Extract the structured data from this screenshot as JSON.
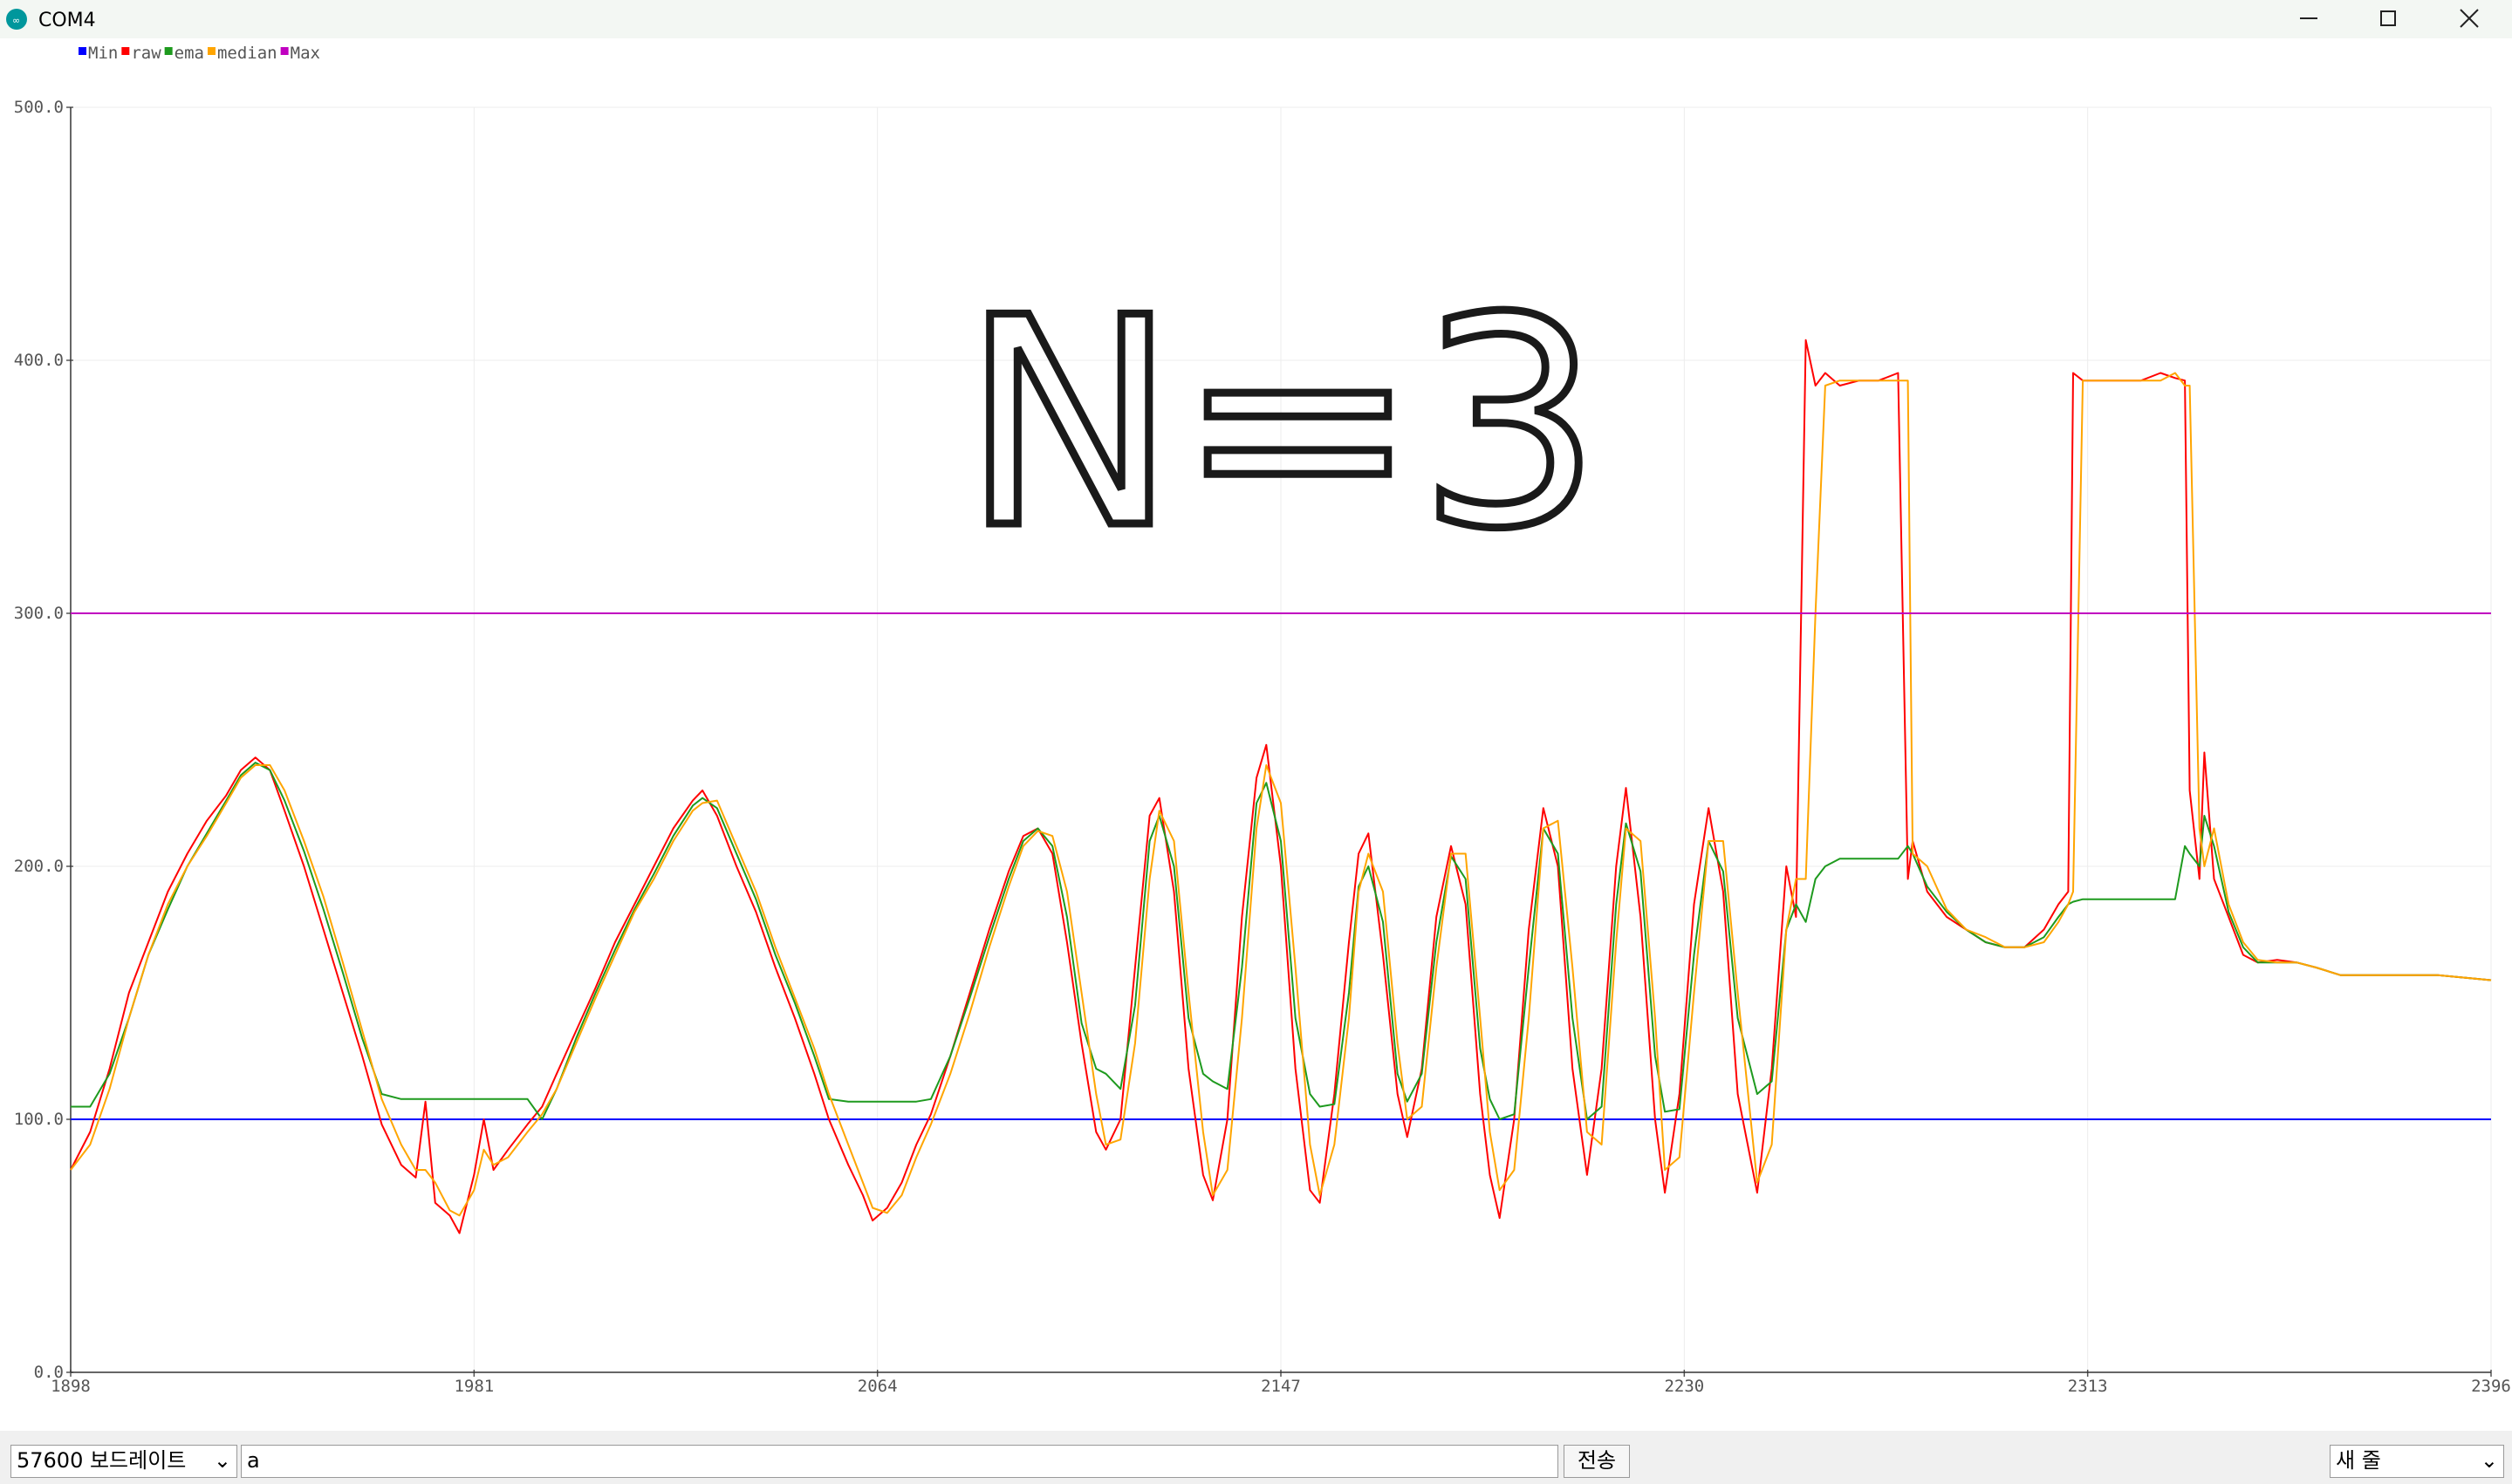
{
  "window": {
    "title": "COM4"
  },
  "controls": {
    "baud_rate": "57600 보드레이트",
    "input_text": "a",
    "send_button": "전송",
    "line_ending": "새 줄"
  },
  "chart_data": {
    "type": "line",
    "annotation": "N=3",
    "x": [
      1898,
      1902,
      1906,
      1910,
      1914,
      1918,
      1922,
      1926,
      1930,
      1933,
      1936,
      1939,
      1942,
      1946,
      1950,
      1954,
      1958,
      1962,
      1966,
      1969,
      1971,
      1973,
      1976,
      1978,
      1981,
      1983,
      1985,
      1988,
      1992,
      1995,
      1998,
      2002,
      2006,
      2010,
      2014,
      2018,
      2022,
      2026,
      2028,
      2031,
      2035,
      2039,
      2043,
      2047,
      2051,
      2054,
      2058,
      2061,
      2063,
      2066,
      2069,
      2072,
      2075,
      2079,
      2083,
      2087,
      2091,
      2094,
      2097,
      2100,
      2103,
      2106,
      2109,
      2111,
      2114,
      2117,
      2120,
      2122,
      2125,
      2128,
      2131,
      2133,
      2136,
      2139,
      2142,
      2144,
      2147,
      2150,
      2153,
      2155,
      2158,
      2161,
      2163,
      2165,
      2168,
      2171,
      2173,
      2176,
      2179,
      2182,
      2185,
      2188,
      2190,
      2192,
      2195,
      2198,
      2201,
      2204,
      2207,
      2210,
      2213,
      2216,
      2218,
      2221,
      2224,
      2226,
      2229,
      2232,
      2235,
      2238,
      2241,
      2245,
      2248,
      2251,
      2253,
      2255,
      2257,
      2259,
      2262,
      2266,
      2270,
      2274,
      2276,
      2277,
      2280,
      2284,
      2288,
      2292,
      2296,
      2300,
      2304,
      2307,
      2309,
      2310,
      2312,
      2316,
      2320,
      2324,
      2328,
      2331,
      2333,
      2334,
      2336,
      2337,
      2339,
      2342,
      2345,
      2348,
      2352,
      2356,
      2360,
      2365,
      2375,
      2385,
      2396
    ],
    "series": [
      {
        "name": "Min",
        "color": "#0000ff",
        "x": [
          1898,
          2396
        ],
        "values": [
          100,
          100
        ]
      },
      {
        "name": "raw",
        "color": "#ff0000",
        "values": [
          80,
          95,
          120,
          150,
          170,
          190,
          205,
          218,
          228,
          238,
          243,
          238,
          222,
          200,
          175,
          150,
          125,
          98,
          82,
          77,
          107,
          67,
          62,
          55,
          78,
          100,
          80,
          88,
          98,
          105,
          118,
          135,
          152,
          170,
          185,
          200,
          215,
          226,
          230,
          220,
          200,
          182,
          160,
          140,
          118,
          100,
          82,
          70,
          60,
          65,
          75,
          90,
          102,
          125,
          150,
          175,
          198,
          212,
          215,
          205,
          170,
          130,
          95,
          88,
          100,
          160,
          220,
          227,
          190,
          120,
          78,
          68,
          100,
          180,
          235,
          248,
          200,
          120,
          72,
          67,
          110,
          170,
          205,
          213,
          165,
          110,
          93,
          120,
          180,
          208,
          185,
          110,
          78,
          61,
          100,
          175,
          223,
          200,
          120,
          78,
          120,
          200,
          231,
          180,
          100,
          71,
          110,
          185,
          223,
          190,
          110,
          71,
          120,
          200,
          180,
          408,
          390,
          395,
          390,
          392,
          392,
          395,
          195,
          210,
          190,
          180,
          175,
          170,
          168,
          168,
          175,
          185,
          190,
          395,
          392,
          392,
          392,
          392,
          395,
          393,
          392,
          230,
          195,
          245,
          195,
          180,
          165,
          162,
          163,
          162,
          160,
          157,
          157,
          157,
          155
        ]
      },
      {
        "name": "ema",
        "color": "#1e9a1e",
        "values": [
          105,
          105,
          118,
          140,
          165,
          183,
          200,
          213,
          226,
          236,
          241,
          238,
          226,
          206,
          183,
          158,
          132,
          110,
          108,
          108,
          108,
          108,
          108,
          108,
          108,
          108,
          108,
          108,
          108,
          100,
          112,
          132,
          150,
          167,
          183,
          197,
          212,
          224,
          227,
          223,
          205,
          187,
          165,
          146,
          125,
          108,
          107,
          107,
          107,
          107,
          107,
          107,
          108,
          125,
          148,
          172,
          195,
          210,
          215,
          208,
          180,
          138,
          120,
          118,
          112,
          145,
          210,
          220,
          200,
          140,
          118,
          115,
          112,
          160,
          225,
          233,
          210,
          140,
          110,
          105,
          106,
          150,
          192,
          200,
          178,
          118,
          107,
          118,
          170,
          204,
          195,
          128,
          108,
          100,
          102,
          160,
          215,
          205,
          140,
          100,
          105,
          185,
          217,
          198,
          125,
          103,
          104,
          165,
          210,
          198,
          140,
          110,
          115,
          175,
          185,
          178,
          195,
          200,
          203,
          203,
          203,
          203,
          208,
          205,
          192,
          182,
          175,
          170,
          168,
          168,
          172,
          180,
          185,
          186,
          187,
          187,
          187,
          187,
          187,
          187,
          208,
          205,
          200,
          220,
          208,
          182,
          168,
          162,
          162,
          162,
          160,
          157,
          157,
          157,
          155
        ]
      },
      {
        "name": "median",
        "color": "#ffa500",
        "values": [
          80,
          90,
          112,
          140,
          165,
          185,
          200,
          212,
          225,
          235,
          240,
          240,
          230,
          210,
          188,
          162,
          135,
          108,
          90,
          80,
          80,
          75,
          64,
          62,
          72,
          88,
          82,
          85,
          95,
          102,
          112,
          130,
          148,
          165,
          182,
          195,
          210,
          222,
          225,
          226,
          208,
          190,
          168,
          148,
          128,
          110,
          90,
          75,
          65,
          63,
          70,
          85,
          98,
          118,
          142,
          168,
          192,
          208,
          214,
          212,
          190,
          150,
          110,
          90,
          92,
          130,
          195,
          222,
          210,
          150,
          95,
          70,
          80,
          140,
          215,
          240,
          225,
          160,
          90,
          70,
          90,
          140,
          190,
          205,
          190,
          130,
          100,
          105,
          160,
          205,
          205,
          140,
          95,
          72,
          80,
          140,
          215,
          218,
          160,
          95,
          90,
          170,
          215,
          210,
          140,
          80,
          85,
          150,
          210,
          210,
          150,
          75,
          90,
          175,
          195,
          195,
          300,
          390,
          392,
          392,
          392,
          392,
          392,
          205,
          200,
          183,
          175,
          172,
          168,
          168,
          170,
          178,
          185,
          190,
          392,
          392,
          392,
          392,
          392,
          395,
          390,
          390,
          215,
          200,
          215,
          185,
          170,
          163,
          162,
          162,
          160,
          157,
          157,
          157,
          155
        ]
      },
      {
        "name": "Max",
        "color": "#c000c0",
        "x": [
          1898,
          2396
        ],
        "values": [
          300,
          300
        ]
      }
    ],
    "xlim": [
      1898,
      2396
    ],
    "xticks": [
      1898,
      1981,
      2064,
      2147,
      2230,
      2313,
      2396
    ],
    "ylim": [
      0,
      500
    ],
    "yticks": [
      {
        "value": 0,
        "label": "0.0"
      },
      {
        "value": 100,
        "label": "100.0"
      },
      {
        "value": 200,
        "label": "200.0"
      },
      {
        "value": 300,
        "label": "300.0"
      },
      {
        "value": 400,
        "label": "400.0"
      },
      {
        "value": 500,
        "label": "500.0"
      }
    ],
    "grid": true
  }
}
